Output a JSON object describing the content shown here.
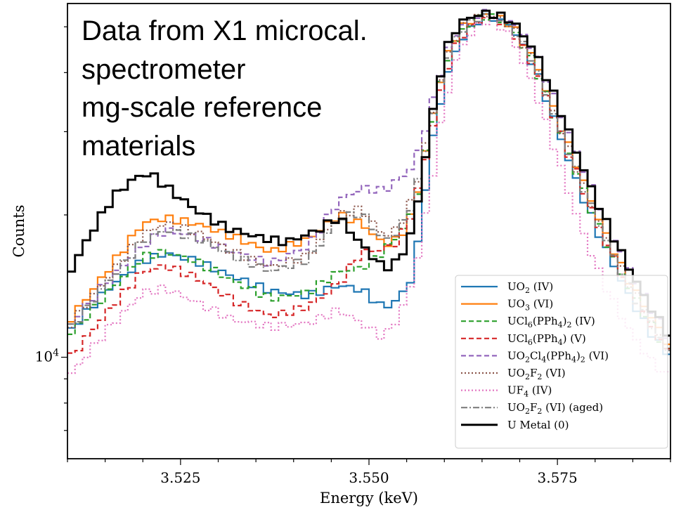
{
  "chart_data": {
    "type": "line",
    "title": "",
    "xlabel": "Energy (keV)",
    "ylabel": "Counts",
    "xlim": [
      3.51,
      3.59
    ],
    "ylim": [
      6100,
      56000
    ],
    "yscale": "log",
    "grid": false,
    "x_ticks": [
      3.525,
      3.55,
      3.575
    ],
    "x_tick_labels": [
      "3.525",
      "3.550",
      "3.575"
    ],
    "y_ticks": [
      10000
    ],
    "y_tick_labels": [
      "10^4"
    ],
    "annotation": [
      "Data from X1 microcal.",
      "spectrometer",
      "mg-scale reference",
      "materials"
    ],
    "legend_position": "lower right",
    "series": [
      {
        "name": "UO2 (IV)",
        "label_parts": [
          [
            "UO",
            ""
          ],
          [
            "2",
            "sub"
          ],
          [
            " (IV)",
            ""
          ]
        ],
        "color": "#1f77b4",
        "dash": "",
        "width": 2.2,
        "x": [
          3.51,
          3.515,
          3.52,
          3.523,
          3.527,
          3.532,
          3.537,
          3.542,
          3.546,
          3.549,
          3.552,
          3.554,
          3.556,
          3.558,
          3.56,
          3.562,
          3.565,
          3.567,
          3.569,
          3.572,
          3.575,
          3.578,
          3.581,
          3.584,
          3.587,
          3.59
        ],
        "y": [
          11200,
          13800,
          16000,
          16600,
          16000,
          14800,
          13800,
          13500,
          14200,
          13900,
          12700,
          13300,
          15000,
          26500,
          38000,
          46500,
          52500,
          52000,
          50000,
          41000,
          30500,
          22500,
          17500,
          14000,
          11500,
          10000
        ]
      },
      {
        "name": "UO3 (VI)",
        "label_parts": [
          [
            "UO",
            ""
          ],
          [
            "3",
            "sub"
          ],
          [
            " (VI)",
            ""
          ]
        ],
        "color": "#ff7f0e",
        "dash": "",
        "width": 2.2,
        "x": [
          3.51,
          3.515,
          3.52,
          3.523,
          3.527,
          3.532,
          3.537,
          3.542,
          3.546,
          3.549,
          3.552,
          3.554,
          3.556,
          3.558,
          3.56,
          3.562,
          3.565,
          3.567,
          3.569,
          3.572,
          3.575,
          3.578,
          3.581,
          3.584,
          3.587,
          3.59
        ],
        "y": [
          11800,
          15000,
          19200,
          19700,
          19200,
          18000,
          16700,
          17800,
          20000,
          19200,
          17300,
          17800,
          20500,
          30000,
          42000,
          49500,
          53200,
          52500,
          50500,
          42500,
          32000,
          24500,
          18800,
          15000,
          12500,
          10500
        ]
      },
      {
        "name": "UCl6(PPh4)2 (IV)",
        "label_parts": [
          [
            "UCl",
            ""
          ],
          [
            "6",
            "sub"
          ],
          [
            "(PPh",
            ""
          ],
          [
            "4",
            "sub"
          ],
          [
            ")",
            ""
          ],
          [
            "2",
            "sub"
          ],
          [
            " (IV)",
            ""
          ]
        ],
        "color": "#2ca02c",
        "dash": "7 4",
        "width": 2.2,
        "x": [
          3.51,
          3.515,
          3.52,
          3.523,
          3.527,
          3.532,
          3.537,
          3.542,
          3.546,
          3.549,
          3.552,
          3.554,
          3.556,
          3.558,
          3.56,
          3.562,
          3.565,
          3.567,
          3.569,
          3.572,
          3.575,
          3.578,
          3.581,
          3.584,
          3.587,
          3.59
        ],
        "y": [
          11000,
          13500,
          16300,
          16700,
          16000,
          14500,
          13300,
          13700,
          15200,
          15400,
          16800,
          18200,
          20500,
          29500,
          41000,
          48500,
          52800,
          52200,
          50000,
          41500,
          31000,
          23500,
          18000,
          14500,
          12000,
          10000
        ]
      },
      {
        "name": "UCl6(PPh4) (V)",
        "label_parts": [
          [
            "UCl",
            ""
          ],
          [
            "6",
            "sub"
          ],
          [
            "(PPh",
            ""
          ],
          [
            "4",
            "sub"
          ],
          [
            ") (V)",
            ""
          ]
        ],
        "color": "#d62728",
        "dash": "7 4",
        "width": 2.2,
        "x": [
          3.51,
          3.515,
          3.52,
          3.523,
          3.527,
          3.532,
          3.537,
          3.542,
          3.546,
          3.549,
          3.552,
          3.554,
          3.556,
          3.558,
          3.56,
          3.562,
          3.565,
          3.567,
          3.569,
          3.572,
          3.575,
          3.578,
          3.581,
          3.584,
          3.587,
          3.59
        ],
        "y": [
          9800,
          12300,
          15200,
          15600,
          14800,
          13200,
          12200,
          12800,
          14300,
          16700,
          16900,
          17600,
          20800,
          28500,
          39500,
          47500,
          52300,
          51800,
          49500,
          41000,
          31000,
          23500,
          18000,
          14500,
          12000,
          10000
        ]
      },
      {
        "name": "UO2Cl4(PPh4)2 (VI)",
        "label_parts": [
          [
            "UO",
            ""
          ],
          [
            "2",
            "sub"
          ],
          [
            "Cl",
            ""
          ],
          [
            "4",
            "sub"
          ],
          [
            "(PPh",
            ""
          ],
          [
            "4",
            "sub"
          ],
          [
            ")",
            ""
          ],
          [
            "2",
            "sub"
          ],
          [
            " (VI)",
            ""
          ]
        ],
        "color": "#9467bd",
        "dash": "7 4",
        "width": 2.2,
        "x": [
          3.51,
          3.515,
          3.52,
          3.523,
          3.527,
          3.532,
          3.537,
          3.542,
          3.546,
          3.549,
          3.552,
          3.554,
          3.556,
          3.558,
          3.56,
          3.562,
          3.565,
          3.567,
          3.569,
          3.572,
          3.575,
          3.578,
          3.581,
          3.584,
          3.587,
          3.59
        ],
        "y": [
          11500,
          14300,
          17200,
          18600,
          18000,
          16700,
          15800,
          17200,
          21400,
          22800,
          22500,
          23800,
          25500,
          32500,
          43000,
          50000,
          53500,
          53200,
          51500,
          44500,
          34000,
          26000,
          20000,
          16000,
          13000,
          10800
        ]
      },
      {
        "name": "UO2F2 (VI)",
        "label_parts": [
          [
            "UO",
            ""
          ],
          [
            "2",
            "sub"
          ],
          [
            "F",
            ""
          ],
          [
            "2",
            "sub"
          ],
          [
            " (VI)",
            ""
          ]
        ],
        "color": "#8c564b",
        "dash": "2 3",
        "width": 2.2,
        "x": [
          3.51,
          3.515,
          3.52,
          3.523,
          3.527,
          3.532,
          3.537,
          3.542,
          3.546,
          3.549,
          3.552,
          3.554,
          3.556,
          3.558,
          3.56,
          3.562,
          3.565,
          3.567,
          3.569,
          3.572,
          3.575,
          3.578,
          3.581,
          3.584,
          3.587,
          3.59
        ],
        "y": [
          11500,
          14500,
          18200,
          19200,
          18400,
          16700,
          15500,
          16400,
          20000,
          20600,
          18000,
          18800,
          22000,
          30500,
          42000,
          49500,
          53000,
          52500,
          50300,
          42000,
          31500,
          24000,
          18500,
          14800,
          12200,
          10200
        ]
      },
      {
        "name": "UF4 (IV)",
        "label_parts": [
          [
            "UF",
            ""
          ],
          [
            "4",
            "sub"
          ],
          [
            " (IV)",
            ""
          ]
        ],
        "color": "#e377c2",
        "dash": "2 3",
        "width": 2.2,
        "x": [
          3.51,
          3.515,
          3.52,
          3.523,
          3.527,
          3.532,
          3.537,
          3.542,
          3.546,
          3.549,
          3.552,
          3.554,
          3.556,
          3.558,
          3.56,
          3.562,
          3.565,
          3.567,
          3.569,
          3.572,
          3.575,
          3.578,
          3.581,
          3.584,
          3.587,
          3.59
        ],
        "y": [
          9000,
          11300,
          13700,
          14000,
          13100,
          12000,
          11600,
          11800,
          12600,
          11800,
          11000,
          12200,
          14800,
          22000,
          34500,
          45000,
          51500,
          51000,
          47500,
          37000,
          26500,
          19000,
          14500,
          11800,
          10000,
          9000
        ]
      },
      {
        "name": "UO2F2 (VI) (aged)",
        "label_parts": [
          [
            "UO",
            ""
          ],
          [
            "2",
            "sub"
          ],
          [
            "F",
            ""
          ],
          [
            "2",
            "sub"
          ],
          [
            " (VI) (aged)",
            ""
          ]
        ],
        "color": "#7f7f7f",
        "dash": "9 3 2 3",
        "width": 2.2,
        "x": [
          3.51,
          3.515,
          3.52,
          3.523,
          3.527,
          3.532,
          3.537,
          3.542,
          3.546,
          3.549,
          3.552,
          3.554,
          3.556,
          3.558,
          3.56,
          3.562,
          3.565,
          3.567,
          3.569,
          3.572,
          3.575,
          3.578,
          3.581,
          3.584,
          3.587,
          3.59
        ],
        "y": [
          11300,
          14200,
          17600,
          18600,
          17900,
          16400,
          15200,
          16100,
          19700,
          20200,
          17600,
          18500,
          21600,
          30000,
          41500,
          49000,
          52700,
          52300,
          50000,
          41800,
          31200,
          23800,
          18300,
          14600,
          12000,
          10000
        ]
      },
      {
        "name": "U Metal (0)",
        "label_parts": [
          [
            "U Metal (0)",
            ""
          ]
        ],
        "color": "#000000",
        "dash": "",
        "width": 3,
        "x": [
          3.51,
          3.513,
          3.516,
          3.519,
          3.521,
          3.523,
          3.527,
          3.531,
          3.535,
          3.539,
          3.543,
          3.546,
          3.549,
          3.552,
          3.554,
          3.556,
          3.558,
          3.56,
          3.562,
          3.565,
          3.567,
          3.569,
          3.572,
          3.575,
          3.578,
          3.581,
          3.584,
          3.587,
          3.59
        ],
        "y": [
          14800,
          18200,
          21800,
          24000,
          24500,
          23000,
          20500,
          18800,
          18000,
          17500,
          18500,
          19800,
          17300,
          15400,
          16000,
          19000,
          30000,
          44000,
          51000,
          53500,
          53000,
          51500,
          44500,
          34500,
          26000,
          20000,
          16000,
          13000,
          11000
        ]
      }
    ]
  }
}
